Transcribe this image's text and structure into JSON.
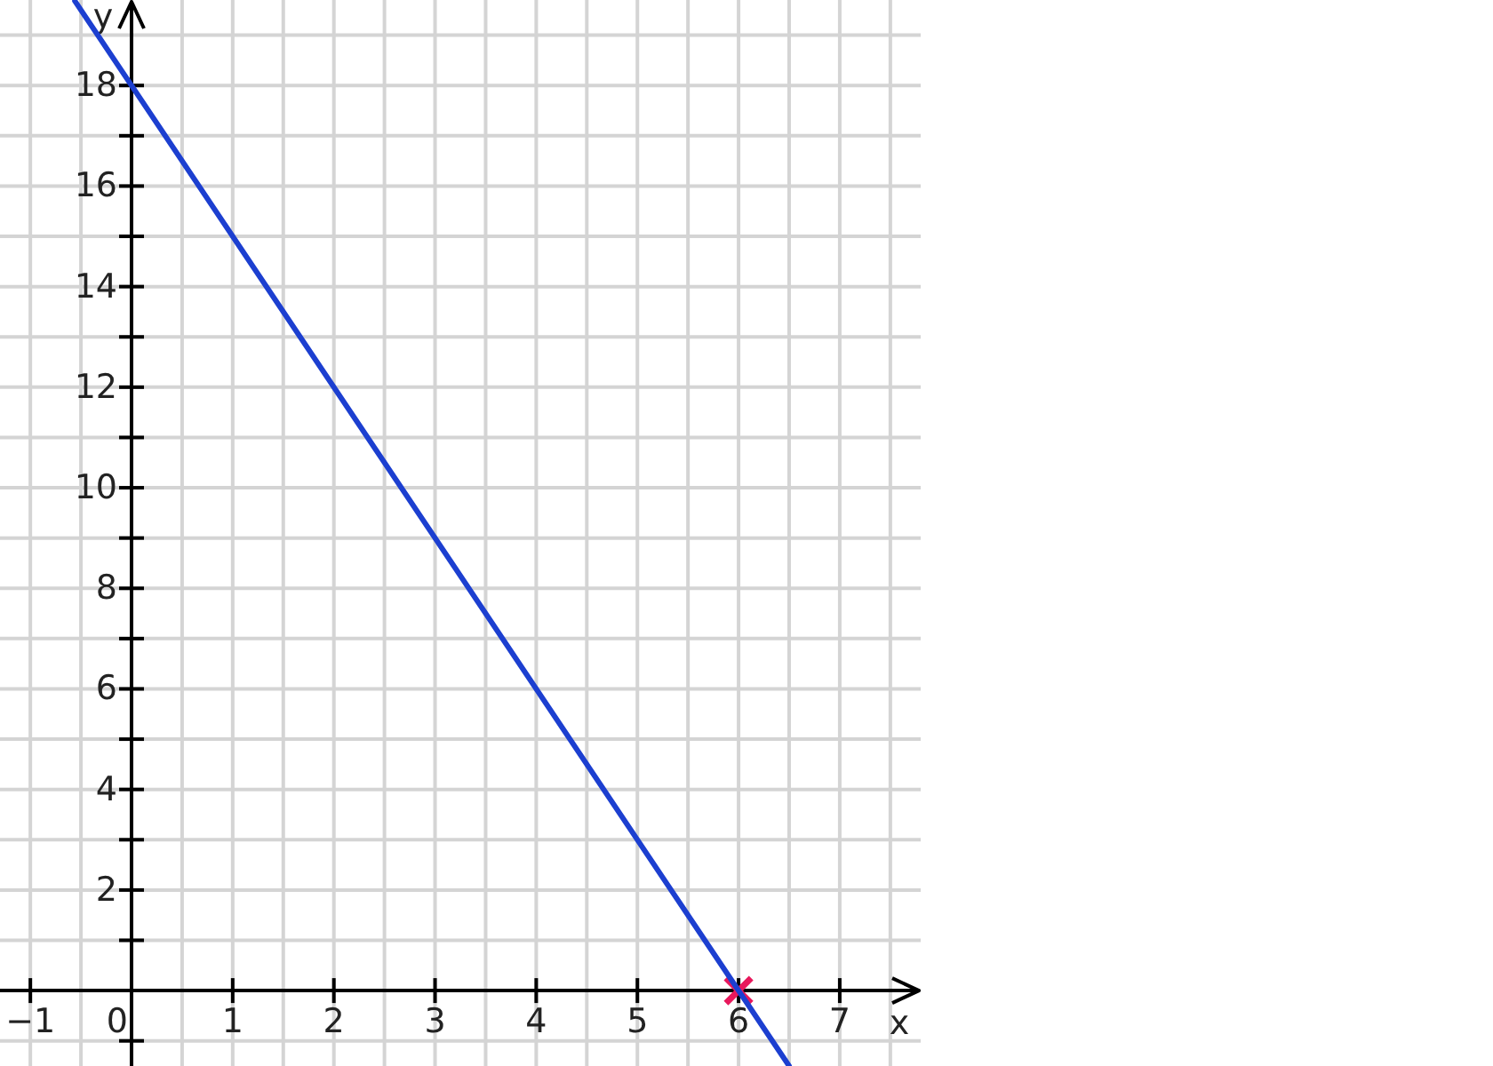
{
  "chart_data": {
    "type": "line",
    "xlabel": "x",
    "ylabel": "y",
    "xlim": [
      -1.3,
      7.8
    ],
    "ylim": [
      -1.5,
      19.7
    ],
    "xticks": [
      {
        "value": -1,
        "label": "−1"
      },
      0,
      1,
      2,
      3,
      4,
      5,
      6,
      7
    ],
    "yticks": [
      {
        "value": -1,
        "label": null
      },
      {
        "value": 1,
        "label": null
      },
      2,
      {
        "value": 3,
        "label": null
      },
      4,
      {
        "value": 5,
        "label": null
      },
      6,
      {
        "value": 7,
        "label": null
      },
      8,
      {
        "value": 9,
        "label": null
      },
      10,
      {
        "value": 11,
        "label": null
      },
      12,
      {
        "value": 13,
        "label": null
      },
      14,
      {
        "value": 15,
        "label": null
      },
      16,
      {
        "value": 17,
        "label": null
      },
      18
    ],
    "grid": true,
    "series": [
      {
        "type": "line",
        "color": "#1c3fd0",
        "x": [
          -0.56,
          6.5
        ],
        "values": [
          19.68,
          -1.5
        ]
      },
      {
        "type": "scatter",
        "color": "#e8185c",
        "x": [
          6
        ],
        "values": [
          0
        ],
        "marker": "cross"
      }
    ]
  }
}
